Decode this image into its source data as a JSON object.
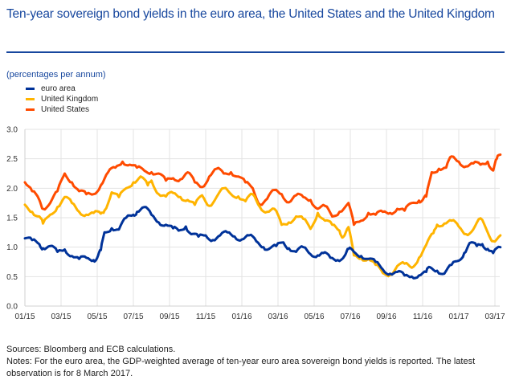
{
  "header": {
    "title": "Ten-year sovereign bond yields in the euro area, the United States and the United Kingdom",
    "units": "(percentages per annum)"
  },
  "footer": {
    "sources": "Sources: Bloomberg and ECB calculations.",
    "notes": "Notes: For the euro area, the GDP-weighted average of ten-year euro area sovereign bond yields is reported. The latest observation is for 8 March 2017."
  },
  "colors": {
    "title": "#17479e",
    "grid": "#e3e3e3"
  },
  "chart_data": {
    "type": "line",
    "title": "Ten-year sovereign bond yields in the euro area, the United States and the United Kingdom",
    "ylabel": "(percentages per annum)",
    "xlabel": "",
    "x_unit": "months since January 2015",
    "xlim": [
      0,
      26.3
    ],
    "ylim": [
      0,
      3.0
    ],
    "yticks": [
      0.0,
      0.5,
      1.0,
      1.5,
      2.0,
      2.5,
      3.0
    ],
    "ytick_labels": [
      "0.0",
      "0.5",
      "1.0",
      "1.5",
      "2.0",
      "2.5",
      "3.0"
    ],
    "xticks": [
      0,
      2,
      4,
      6,
      8,
      10,
      12,
      14,
      16,
      18,
      20,
      22,
      24,
      26
    ],
    "xtick_labels": [
      "01/15",
      "03/15",
      "05/15",
      "07/15",
      "09/15",
      "11/15",
      "01/16",
      "03/16",
      "05/16",
      "07/16",
      "09/16",
      "11/16",
      "01/17",
      "03/17"
    ],
    "grid": true,
    "legend_position": "top-left",
    "series": [
      {
        "name": "euro area",
        "color": "#003299",
        "x": [
          0,
          0.4,
          0.8,
          1.0,
          1.4,
          1.8,
          2.2,
          2.6,
          3.0,
          3.4,
          3.8,
          4.0,
          4.2,
          4.4,
          4.8,
          5.2,
          5.6,
          6.0,
          6.2,
          6.6,
          7.0,
          7.4,
          7.8,
          8.2,
          8.5,
          8.9,
          9.2,
          9.6,
          10.0,
          10.4,
          10.8,
          11.2,
          11.6,
          12.0,
          12.4,
          12.8,
          13.2,
          13.5,
          13.9,
          14.3,
          14.6,
          15.0,
          15.4,
          15.8,
          16.2,
          16.5,
          16.9,
          17.3,
          17.7,
          17.9,
          18.2,
          18.6,
          19.0,
          19.4,
          19.8,
          20.2,
          20.6,
          21.0,
          21.4,
          21.8,
          22.2,
          22.4,
          22.8,
          23.2,
          23.6,
          24.0,
          24.3,
          24.6,
          25.0,
          25.3,
          25.6,
          25.9,
          26.3
        ],
        "values": [
          1.15,
          1.12,
          1.05,
          0.98,
          1.02,
          0.92,
          0.96,
          0.85,
          0.8,
          0.82,
          0.78,
          0.82,
          0.95,
          1.25,
          1.32,
          1.3,
          1.5,
          1.55,
          1.6,
          1.68,
          1.55,
          1.42,
          1.38,
          1.32,
          1.28,
          1.35,
          1.22,
          1.18,
          1.2,
          1.12,
          1.2,
          1.25,
          1.18,
          1.13,
          1.2,
          1.1,
          1.0,
          0.97,
          1.02,
          1.08,
          0.98,
          0.92,
          1.0,
          0.88,
          0.86,
          0.9,
          0.82,
          0.78,
          0.86,
          0.97,
          0.92,
          0.85,
          0.8,
          0.75,
          0.62,
          0.55,
          0.58,
          0.52,
          0.5,
          0.52,
          0.58,
          0.66,
          0.6,
          0.55,
          0.7,
          0.77,
          0.9,
          1.07,
          1.02,
          1.05,
          0.97,
          0.9,
          1.0
        ],
        "values_tail": [
          1.2,
          1.22,
          1.15,
          1.08,
          1.18
        ]
      },
      {
        "name": "United Kingdom",
        "color": "#ffb400",
        "x": [
          0,
          0.4,
          0.8,
          1.0,
          1.4,
          1.8,
          2.2,
          2.6,
          3.0,
          3.4,
          3.8,
          4.2,
          4.4,
          4.8,
          5.2,
          5.6,
          6.0,
          6.4,
          6.8,
          7.0,
          7.4,
          7.8,
          8.2,
          8.6,
          9.0,
          9.4,
          9.8,
          10.2,
          10.6,
          11.0,
          11.4,
          11.8,
          12.2,
          12.6,
          13.0,
          13.4,
          13.8,
          14.2,
          14.6,
          15.0,
          15.4,
          15.8,
          16.2,
          16.6,
          17.0,
          17.4,
          17.6,
          17.9,
          18.2,
          18.6,
          19.0,
          19.4,
          19.8,
          20.2,
          20.6,
          21.0,
          21.4,
          21.8,
          22.2,
          22.6,
          22.8,
          23.2,
          23.6,
          24.0,
          24.4,
          24.8,
          25.2,
          25.6,
          25.9,
          26.3
        ],
        "values": [
          1.72,
          1.6,
          1.52,
          1.4,
          1.55,
          1.68,
          1.85,
          1.75,
          1.6,
          1.55,
          1.58,
          1.57,
          1.62,
          1.93,
          1.85,
          2.0,
          2.1,
          2.2,
          2.05,
          2.13,
          1.9,
          1.86,
          1.92,
          1.85,
          1.8,
          1.72,
          1.88,
          1.7,
          1.85,
          2.0,
          1.9,
          1.86,
          1.78,
          1.9,
          1.68,
          1.6,
          1.65,
          1.38,
          1.42,
          1.52,
          1.48,
          1.31,
          1.58,
          1.45,
          1.38,
          1.28,
          1.17,
          1.34,
          0.86,
          0.81,
          0.8,
          0.7,
          0.56,
          0.53,
          0.68,
          0.72,
          0.65,
          0.82,
          1.04,
          1.24,
          1.38,
          1.4,
          1.45,
          1.35,
          1.22,
          1.3,
          1.49,
          1.25,
          1.1,
          1.2
        ],
        "values_tail": [
          1.22
        ]
      },
      {
        "name": "United States",
        "color": "#ff4b00",
        "x": [
          0,
          0.4,
          0.8,
          1.0,
          1.4,
          1.8,
          2.2,
          2.6,
          3.0,
          3.4,
          3.8,
          4.2,
          4.6,
          5.0,
          5.4,
          5.8,
          6.2,
          6.6,
          7.0,
          7.4,
          7.8,
          8.2,
          8.6,
          9.0,
          9.4,
          9.8,
          10.2,
          10.6,
          11.0,
          11.4,
          11.8,
          12.2,
          12.6,
          13.0,
          13.4,
          13.8,
          14.2,
          14.6,
          15.0,
          15.4,
          15.8,
          16.2,
          16.6,
          17.0,
          17.4,
          17.9,
          18.2,
          18.6,
          19.0,
          19.4,
          19.8,
          20.2,
          20.6,
          21.0,
          21.4,
          21.8,
          22.0,
          22.2,
          22.5,
          22.9,
          23.3,
          23.6,
          24.0,
          24.4,
          24.8,
          25.2,
          25.6,
          25.9,
          26.1,
          26.3
        ],
        "values": [
          2.1,
          1.95,
          1.8,
          1.65,
          1.75,
          1.95,
          2.25,
          2.1,
          1.95,
          1.9,
          1.9,
          2.05,
          2.27,
          2.35,
          2.45,
          2.4,
          2.35,
          2.3,
          2.27,
          2.25,
          2.13,
          2.17,
          2.15,
          2.27,
          2.1,
          2.02,
          2.2,
          2.33,
          2.25,
          2.27,
          2.2,
          2.1,
          2.0,
          1.72,
          1.82,
          1.97,
          1.9,
          1.76,
          1.88,
          1.85,
          1.8,
          1.65,
          1.7,
          1.52,
          1.6,
          1.75,
          1.38,
          1.45,
          1.58,
          1.55,
          1.6,
          1.58,
          1.65,
          1.62,
          1.75,
          1.79,
          1.8,
          1.86,
          2.27,
          2.33,
          2.35,
          2.54,
          2.45,
          2.37,
          2.42,
          2.4,
          2.45,
          2.3,
          2.5,
          2.57
        ],
        "values_tail": []
      }
    ]
  }
}
